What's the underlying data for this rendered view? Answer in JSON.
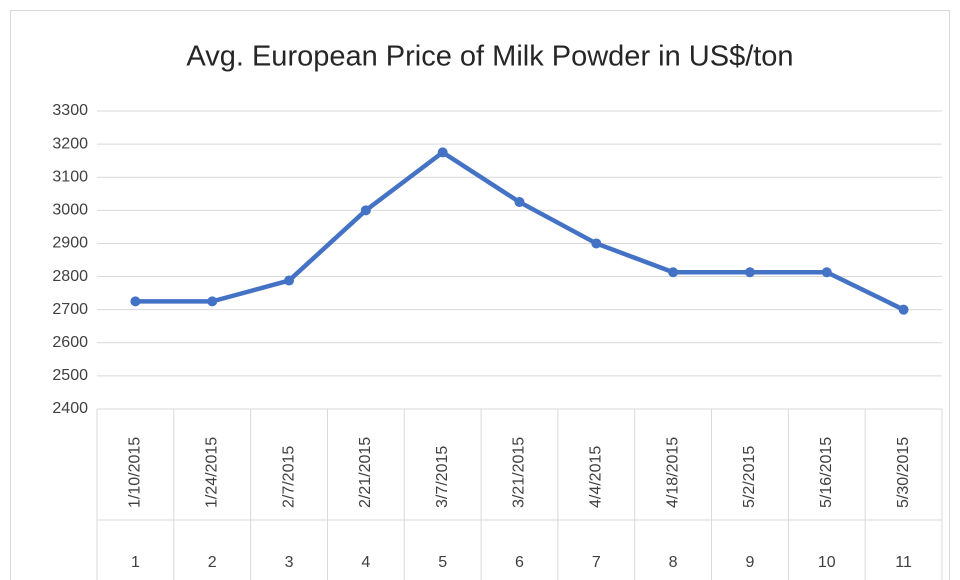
{
  "chart_data": {
    "type": "line",
    "title": "Avg. European Price of Milk Powder in US$/ton",
    "categories": [
      "1/10/2015",
      "1/24/2015",
      "2/7/2015",
      "2/21/2015",
      "3/7/2015",
      "3/21/2015",
      "4/4/2015",
      "4/18/2015",
      "5/2/2015",
      "5/16/2015",
      "5/30/2015"
    ],
    "category_numbers": [
      1,
      2,
      3,
      4,
      5,
      6,
      7,
      8,
      9,
      10,
      11
    ],
    "series": [
      {
        "name": "Avg. European Price of Milk Powder in US$/ton",
        "color": "#4472c4",
        "values": [
          2725,
          2725,
          2788,
          3000,
          3175,
          3025,
          2900,
          2813,
          2813,
          2813,
          2700
        ]
      }
    ],
    "ylim": [
      2400,
      3300
    ],
    "yticks": [
      2400,
      2500,
      2600,
      2700,
      2800,
      2900,
      3000,
      3100,
      3200,
      3300
    ],
    "grid": true
  }
}
